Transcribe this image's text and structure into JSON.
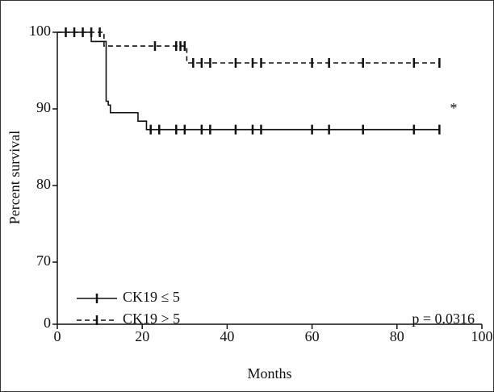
{
  "chart_data": {
    "type": "km",
    "xlabel": "Months",
    "ylabel": "Percent survival",
    "xlim": [
      0,
      100
    ],
    "xticks": [
      0,
      20,
      40,
      60,
      80,
      100
    ],
    "ylim": [
      0,
      100
    ],
    "yticks": [
      0,
      70,
      80,
      90,
      100
    ],
    "axis_break": true,
    "annotations": [
      "*",
      "p = 0.0316"
    ],
    "series": [
      {
        "name": "CK19 ≤ 5",
        "color": "#111111",
        "dash": "solid",
        "x": [
          0,
          8,
          11.5,
          12,
          12.5,
          19,
          21,
          90
        ],
        "values": [
          100,
          98.8,
          91,
          90.5,
          89.5,
          88.4,
          87.3,
          87.3
        ],
        "censored_x": [
          22,
          24,
          28,
          30,
          34,
          36,
          42,
          46,
          48,
          60,
          64,
          72,
          84,
          90
        ],
        "censored_values": [
          87.3,
          87.3,
          87.3,
          87.3,
          87.3,
          87.3,
          87.3,
          87.3,
          87.3,
          87.3,
          87.3,
          87.3,
          87.3,
          87.3
        ]
      },
      {
        "name": "CK19 > 5",
        "color": "#111111",
        "dash": "dashed",
        "x": [
          0,
          11,
          30.5,
          90
        ],
        "values": [
          100,
          98.2,
          96,
          96
        ],
        "censored_x": [
          2,
          4,
          6,
          8,
          10,
          23,
          28,
          29,
          30,
          32,
          34,
          36,
          42,
          46,
          48,
          60,
          64,
          72,
          84,
          90
        ],
        "censored_values": [
          100,
          100,
          100,
          100,
          100,
          98.2,
          98.2,
          98.2,
          98.2,
          96,
          96,
          96,
          96,
          96,
          96,
          96,
          96,
          96,
          96,
          96
        ]
      }
    ]
  }
}
